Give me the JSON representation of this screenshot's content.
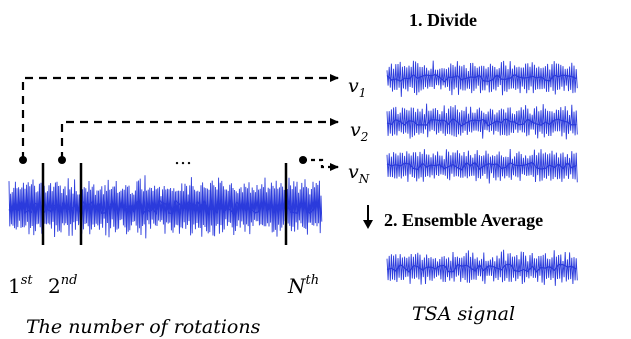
{
  "steps": {
    "divide_label": "1. Divide",
    "ensemble_label": "2. Ensemble Average"
  },
  "segments": {
    "v1": {
      "base": "v",
      "sub": "1"
    },
    "v2": {
      "base": "v",
      "sub": "2"
    },
    "vN": {
      "base": "v",
      "sub": "N"
    }
  },
  "rotation_marks": {
    "first": {
      "base": "1",
      "sup": "st"
    },
    "second": {
      "base": "2",
      "sup": "nd"
    },
    "nth": {
      "base": "N",
      "sup": "th"
    },
    "ellipsis": "…"
  },
  "captions": {
    "rotations": "The number of rotations",
    "tsa": "TSA signal"
  },
  "colors": {
    "signal": "#2b3bdc",
    "ink": "#000000"
  },
  "icons": {
    "down_arrow": "down-arrow-icon"
  }
}
